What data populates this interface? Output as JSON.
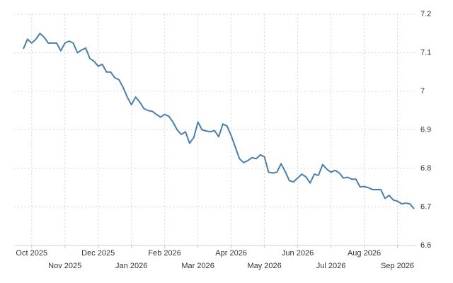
{
  "chart_data": {
    "type": "line",
    "categories": [
      null,
      null,
      "Oct 2025",
      null,
      null,
      null,
      null,
      null,
      null,
      null,
      "Nov 2025",
      null,
      null,
      null,
      null,
      null,
      null,
      null,
      "Dec 2025",
      null,
      null,
      null,
      null,
      null,
      null,
      null,
      "Jan 2026",
      null,
      null,
      null,
      null,
      null,
      null,
      null,
      "Feb 2026",
      null,
      null,
      null,
      null,
      null,
      null,
      null,
      "Mar 2026",
      null,
      null,
      null,
      null,
      null,
      null,
      null,
      "Apr 2026",
      null,
      null,
      null,
      null,
      null,
      null,
      null,
      "May 2026",
      null,
      null,
      null,
      null,
      null,
      null,
      null,
      "Jun 2026",
      null,
      null,
      null,
      null,
      null,
      null,
      null,
      "Jul 2026",
      null,
      null,
      null,
      null,
      null,
      null,
      null,
      "Aug 2026",
      null,
      null,
      null,
      null,
      null,
      null,
      null,
      "Sep 2026",
      null,
      null,
      null,
      null
    ],
    "series": [
      {
        "color": "#4a7fab",
        "values": [
          7.11,
          7.135,
          7.125,
          7.135,
          7.15,
          7.14,
          7.125,
          7.125,
          7.125,
          7.105,
          7.125,
          7.13,
          7.125,
          7.1,
          7.107,
          7.112,
          7.085,
          7.078,
          7.065,
          7.07,
          7.05,
          7.05,
          7.035,
          7.03,
          7.01,
          6.985,
          6.965,
          6.985,
          6.972,
          6.955,
          6.95,
          6.948,
          6.94,
          6.933,
          6.94,
          6.935,
          6.92,
          6.9,
          6.888,
          6.895,
          6.865,
          6.88,
          6.92,
          6.9,
          6.897,
          6.895,
          6.898,
          6.882,
          6.915,
          6.91,
          6.885,
          6.855,
          6.825,
          6.815,
          6.82,
          6.828,
          6.825,
          6.835,
          6.83,
          6.79,
          6.788,
          6.79,
          6.812,
          6.792,
          6.768,
          6.765,
          6.775,
          6.785,
          6.778,
          6.762,
          6.785,
          6.782,
          6.81,
          6.798,
          6.79,
          6.795,
          6.788,
          6.775,
          6.777,
          6.772,
          6.772,
          6.752,
          6.753,
          6.75,
          6.745,
          6.745,
          6.745,
          6.722,
          6.73,
          6.718,
          6.715,
          6.708,
          6.71,
          6.708,
          6.695
        ]
      }
    ],
    "ylim": [
      6.6,
      7.2
    ],
    "yticks": [
      6.6,
      6.7,
      6.8,
      6.9,
      7,
      7.1,
      7.2
    ],
    "grid": true
  }
}
